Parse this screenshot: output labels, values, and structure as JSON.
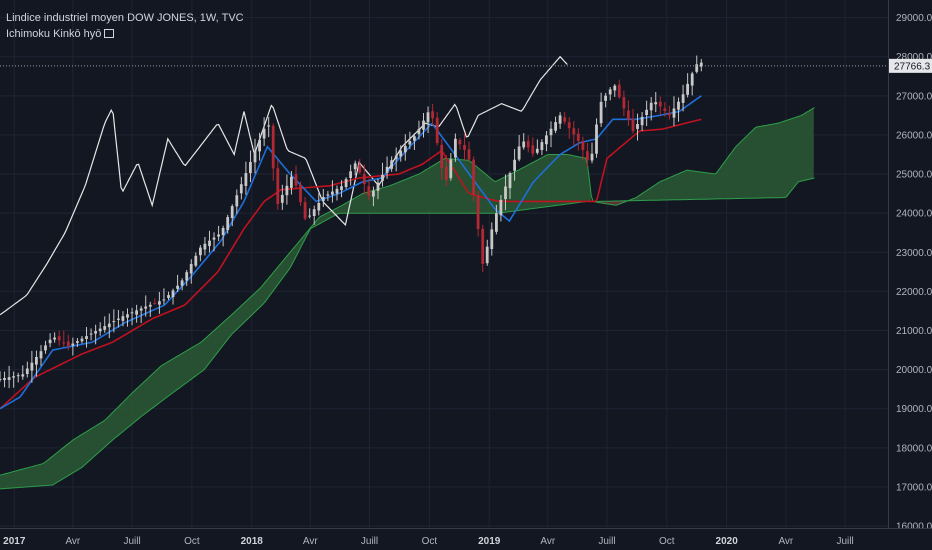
{
  "header": {
    "title": "Lindice industriel moyen DOW JONES, 1W, TVC",
    "indicator": "Ichimoku Kinkō hyō"
  },
  "colors": {
    "background": "#131722",
    "grid": "#1f2432",
    "axis_text": "#b2b5be",
    "candle_up": "#c8c8c8",
    "candle_down": "#b22833",
    "tenkan": "#1e6fd9",
    "kijun": "#c1121f",
    "chikou": "#e6e6e6",
    "cloud_bull": "#2a5a34",
    "cloud_bear": "#6b3a3a",
    "span_a": "#2e9e4a",
    "span_b": "#2e9e4a"
  },
  "chart_data": {
    "type": "candlestick",
    "title": "Lindice industriel moyen DOW JONES, 1W, TVC",
    "indicator": "Ichimoku Kinkō hyō",
    "last_price": "27766.3",
    "y_axis": {
      "range": [
        15950,
        29450
      ],
      "ticks": [
        16000.0,
        17000.0,
        18000.0,
        19000.0,
        20000.0,
        21000.0,
        22000.0,
        23000.0,
        24000.0,
        25000.0,
        26000.0,
        27000.0,
        28000.0,
        29000.0
      ],
      "tick_labels": [
        "16000.0",
        "17000.0",
        "18000.0",
        "19000.0",
        "20000.0",
        "21000.0",
        "22000.0",
        "23000.0",
        "24000.0",
        "25000.0",
        "26000.0",
        "27000.0",
        "28000.0",
        "29000.0"
      ]
    },
    "x_axis": {
      "range": [
        "2016-12-10",
        "2020-09-05"
      ],
      "ticks": [
        {
          "date": "2017-01-01",
          "label": "2017",
          "bold": true
        },
        {
          "date": "2017-04-01",
          "label": "Avr",
          "bold": false
        },
        {
          "date": "2017-07-01",
          "label": "Juill",
          "bold": false
        },
        {
          "date": "2017-10-01",
          "label": "Oct",
          "bold": false
        },
        {
          "date": "2018-01-01",
          "label": "2018",
          "bold": true
        },
        {
          "date": "2018-04-01",
          "label": "Avr",
          "bold": false
        },
        {
          "date": "2018-07-01",
          "label": "Juill",
          "bold": false
        },
        {
          "date": "2018-10-01",
          "label": "Oct",
          "bold": false
        },
        {
          "date": "2019-01-01",
          "label": "2019",
          "bold": true
        },
        {
          "date": "2019-04-01",
          "label": "Avr",
          "bold": false
        },
        {
          "date": "2019-07-01",
          "label": "Juill",
          "bold": false
        },
        {
          "date": "2019-10-01",
          "label": "Oct",
          "bold": false
        },
        {
          "date": "2020-01-01",
          "label": "2020",
          "bold": true
        },
        {
          "date": "2020-04-01",
          "label": "Avr",
          "bold": false
        },
        {
          "date": "2020-07-01",
          "label": "Juill",
          "bold": false
        }
      ]
    },
    "price_anchors": [
      [
        "2016-12-10",
        19760
      ],
      [
        "2017-01-14",
        19880
      ],
      [
        "2017-03-01",
        20850
      ],
      [
        "2017-03-25",
        20600
      ],
      [
        "2017-05-01",
        20940
      ],
      [
        "2017-06-15",
        21350
      ],
      [
        "2017-07-20",
        21600
      ],
      [
        "2017-08-20",
        21800
      ],
      [
        "2017-09-15",
        22250
      ],
      [
        "2017-10-15",
        23150
      ],
      [
        "2017-11-15",
        23500
      ],
      [
        "2017-12-15",
        24700
      ],
      [
        "2018-01-26",
        26400
      ],
      [
        "2018-02-09",
        24200
      ],
      [
        "2018-03-05",
        25000
      ],
      [
        "2018-03-25",
        23800
      ],
      [
        "2018-04-20",
        24400
      ],
      [
        "2018-05-20",
        24700
      ],
      [
        "2018-06-10",
        25300
      ],
      [
        "2018-07-01",
        24400
      ],
      [
        "2018-08-01",
        25300
      ],
      [
        "2018-09-10",
        26000
      ],
      [
        "2018-10-03",
        26700
      ],
      [
        "2018-10-25",
        24700
      ],
      [
        "2018-11-10",
        25900
      ],
      [
        "2018-11-30",
        25500
      ],
      [
        "2018-12-22",
        22700
      ],
      [
        "2019-01-10",
        23900
      ],
      [
        "2019-02-20",
        25900
      ],
      [
        "2019-03-10",
        25500
      ],
      [
        "2019-04-20",
        26500
      ],
      [
        "2019-05-20",
        25800
      ],
      [
        "2019-06-05",
        25200
      ],
      [
        "2019-06-20",
        26800
      ],
      [
        "2019-07-12",
        27300
      ],
      [
        "2019-08-10",
        26100
      ],
      [
        "2019-09-10",
        26900
      ],
      [
        "2019-10-05",
        26500
      ],
      [
        "2019-10-25",
        27000
      ],
      [
        "2019-11-15",
        27800
      ],
      [
        "2019-11-23",
        27850
      ]
    ],
    "tenkan_anchors": [
      [
        "2016-12-10",
        19000
      ],
      [
        "2017-01-10",
        19300
      ],
      [
        "2017-03-01",
        20500
      ],
      [
        "2017-05-01",
        20700
      ],
      [
        "2017-06-20",
        21200
      ],
      [
        "2017-08-20",
        21650
      ],
      [
        "2017-10-01",
        22400
      ],
      [
        "2017-11-15",
        23300
      ],
      [
        "2017-12-20",
        24300
      ],
      [
        "2018-01-25",
        25700
      ],
      [
        "2018-03-01",
        25000
      ],
      [
        "2018-04-10",
        24300
      ],
      [
        "2018-05-15",
        24500
      ],
      [
        "2018-06-20",
        24800
      ],
      [
        "2018-07-20",
        24900
      ],
      [
        "2018-09-01",
        25700
      ],
      [
        "2018-10-05",
        26300
      ],
      [
        "2018-11-05",
        25600
      ],
      [
        "2018-12-10",
        24800
      ],
      [
        "2019-01-10",
        24100
      ],
      [
        "2019-02-01",
        23800
      ],
      [
        "2019-03-10",
        24800
      ],
      [
        "2019-04-20",
        25500
      ],
      [
        "2019-05-20",
        25800
      ],
      [
        "2019-06-15",
        25900
      ],
      [
        "2019-07-10",
        26400
      ],
      [
        "2019-08-15",
        26400
      ],
      [
        "2019-09-20",
        26500
      ],
      [
        "2019-10-20",
        26600
      ],
      [
        "2019-11-23",
        27000
      ]
    ],
    "kijun_anchors": [
      [
        "2016-12-10",
        19000
      ],
      [
        "2017-02-01",
        19800
      ],
      [
        "2017-04-15",
        20400
      ],
      [
        "2017-06-01",
        20700
      ],
      [
        "2017-08-01",
        21300
      ],
      [
        "2017-09-20",
        21650
      ],
      [
        "2017-11-10",
        22500
      ],
      [
        "2017-12-20",
        23600
      ],
      [
        "2018-01-20",
        24300
      ],
      [
        "2018-02-15",
        24600
      ],
      [
        "2018-05-01",
        24700
      ],
      [
        "2018-06-15",
        24900
      ],
      [
        "2018-08-15",
        25000
      ],
      [
        "2018-09-20",
        25250
      ],
      [
        "2018-10-20",
        25600
      ],
      [
        "2018-12-01",
        24500
      ],
      [
        "2019-01-15",
        24300
      ],
      [
        "2019-06-15",
        24300
      ],
      [
        "2019-07-01",
        25400
      ],
      [
        "2019-08-20",
        26100
      ],
      [
        "2019-09-25",
        26150
      ],
      [
        "2019-11-23",
        26400
      ]
    ],
    "chikou_anchors": [
      [
        "2016-12-10",
        21400
      ],
      [
        "2017-01-20",
        21900
      ],
      [
        "2017-02-20",
        22700
      ],
      [
        "2017-03-20",
        23500
      ],
      [
        "2017-04-20",
        24700
      ],
      [
        "2017-05-20",
        26300
      ],
      [
        "2017-06-01",
        26700
      ],
      [
        "2017-06-15",
        24500
      ],
      [
        "2017-07-10",
        25300
      ],
      [
        "2017-08-01",
        24200
      ],
      [
        "2017-08-25",
        25900
      ],
      [
        "2017-09-20",
        25200
      ],
      [
        "2017-11-10",
        26300
      ],
      [
        "2017-12-05",
        25500
      ],
      [
        "2017-12-20",
        26600
      ],
      [
        "2018-01-05",
        25500
      ],
      [
        "2018-02-01",
        26800
      ],
      [
        "2018-02-25",
        25600
      ],
      [
        "2018-03-25",
        25400
      ],
      [
        "2018-04-20",
        24300
      ],
      [
        "2018-05-25",
        23700
      ],
      [
        "2018-06-15",
        25300
      ],
      [
        "2018-07-15",
        24700
      ],
      [
        "2018-08-20",
        25700
      ],
      [
        "2018-09-25",
        26300
      ],
      [
        "2018-10-15",
        26200
      ],
      [
        "2018-11-10",
        26800
      ],
      [
        "2018-11-28",
        25900
      ],
      [
        "2018-12-15",
        26500
      ],
      [
        "2019-01-20",
        26800
      ],
      [
        "2019-02-20",
        26600
      ],
      [
        "2019-03-20",
        27400
      ],
      [
        "2019-04-20",
        28000
      ],
      [
        "2019-05-01",
        27800
      ]
    ],
    "span_a_anchors": [
      [
        "2016-12-10",
        17300
      ],
      [
        "2017-02-15",
        17600
      ],
      [
        "2017-04-01",
        18200
      ],
      [
        "2017-05-20",
        18700
      ],
      [
        "2017-07-01",
        19400
      ],
      [
        "2017-08-15",
        20100
      ],
      [
        "2017-10-15",
        20700
      ],
      [
        "2017-12-01",
        21400
      ],
      [
        "2018-01-15",
        22100
      ],
      [
        "2018-03-01",
        23000
      ],
      [
        "2018-04-15",
        23900
      ],
      [
        "2018-05-20",
        24200
      ],
      [
        "2018-06-20",
        24500
      ],
      [
        "2018-08-01",
        24700
      ],
      [
        "2018-09-15",
        25000
      ],
      [
        "2018-10-25",
        25400
      ],
      [
        "2018-12-01",
        25350
      ],
      [
        "2019-01-10",
        24800
      ],
      [
        "2019-02-15",
        25100
      ],
      [
        "2019-04-01",
        25500
      ],
      [
        "2019-05-01",
        25500
      ],
      [
        "2019-05-31",
        25400
      ],
      [
        "2019-06-08",
        24300
      ],
      [
        "2019-07-15",
        24200
      ],
      [
        "2019-08-15",
        24400
      ],
      [
        "2019-09-20",
        24800
      ],
      [
        "2019-11-01",
        25100
      ],
      [
        "2019-12-15",
        25000
      ],
      [
        "2020-01-15",
        25700
      ],
      [
        "2020-02-15",
        26200
      ],
      [
        "2020-03-20",
        26300
      ],
      [
        "2020-04-25",
        26500
      ],
      [
        "2020-05-15",
        26700
      ]
    ],
    "span_b_anchors": [
      [
        "2016-12-10",
        16950
      ],
      [
        "2017-03-01",
        17050
      ],
      [
        "2017-04-15",
        17500
      ],
      [
        "2017-06-01",
        18200
      ],
      [
        "2017-07-15",
        18800
      ],
      [
        "2017-09-01",
        19400
      ],
      [
        "2017-10-20",
        20000
      ],
      [
        "2017-12-01",
        20900
      ],
      [
        "2018-01-20",
        21700
      ],
      [
        "2018-03-01",
        22600
      ],
      [
        "2018-04-01",
        23600
      ],
      [
        "2018-05-15",
        24000
      ],
      [
        "2018-12-01",
        24000
      ],
      [
        "2019-01-15",
        24000
      ],
      [
        "2019-05-31",
        24300
      ],
      [
        "2019-06-15",
        24300
      ],
      [
        "2020-04-01",
        24400
      ],
      [
        "2020-04-20",
        24800
      ],
      [
        "2020-05-15",
        24900
      ]
    ]
  }
}
